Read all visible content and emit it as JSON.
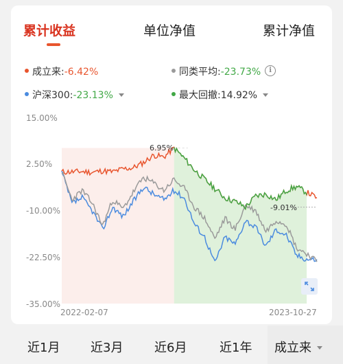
{
  "tabs": [
    {
      "label": "累计收益",
      "active": true
    },
    {
      "label": "单位净值",
      "active": false
    },
    {
      "label": "累计净值",
      "active": false
    }
  ],
  "legend": {
    "since_inception": {
      "label": "成立来:",
      "value": "-6.42%",
      "color": "#e8552e"
    },
    "peer_avg": {
      "label": "同类平均:",
      "value": "-23.73%",
      "color": "#9a9a9a",
      "icon": "info-icon"
    },
    "hs300": {
      "label": "沪深300:",
      "value": "-23.13%",
      "color": "#4a8bdf",
      "icon": "caret-down-icon"
    },
    "max_drawdown": {
      "label": "最大回撤:",
      "value": "14.92%",
      "color": "#41a846",
      "icon": "caret-down-icon"
    }
  },
  "chart_data": {
    "type": "line",
    "y_ticks": [
      "15.00%",
      "2.50%",
      "-10.00%",
      "-22.50%",
      "-35.00%"
    ],
    "ylim": [
      -35,
      15
    ],
    "x_range": [
      "2022-02-07",
      "2023-10-27"
    ],
    "annotations": {
      "peak": "6.95%",
      "end": "-9.01%"
    },
    "x": [
      0,
      0.04,
      0.08,
      0.12,
      0.16,
      0.2,
      0.24,
      0.28,
      0.32,
      0.36,
      0.4,
      0.44,
      0.48,
      0.52,
      0.56,
      0.6,
      0.64,
      0.68,
      0.72,
      0.76,
      0.8,
      0.84,
      0.88,
      0.92,
      0.96,
      1.0
    ],
    "series": [
      {
        "name": "成立来",
        "color": "#e8552e",
        "values": [
          0.5,
          0.5,
          0.6,
          0.4,
          0.8,
          0.5,
          1.3,
          1.6,
          3.0,
          5.0,
          4.5,
          6.95,
          4.2,
          1.0,
          -1.5,
          -4.0,
          -6.5,
          -7.5,
          -9.0,
          -6.0,
          -5.5,
          -7.0,
          -4.5,
          -3.5,
          -5.0,
          -6.42
        ]
      },
      {
        "name": "同类平均",
        "color": "#9a9a9a",
        "values": [
          0.5,
          -7.0,
          -4.5,
          -8.0,
          -14.0,
          -7.0,
          -9.5,
          -5.0,
          -1.0,
          -2.5,
          -4.5,
          -1.5,
          -4.0,
          -9.0,
          -12.0,
          -17.5,
          -12.0,
          -15.0,
          -8.5,
          -10.0,
          -15.5,
          -12.5,
          -13.5,
          -20.0,
          -21.5,
          -23.73
        ]
      },
      {
        "name": "沪深300",
        "color": "#4a8bdf",
        "values": [
          0.5,
          -8.0,
          -6.5,
          -10.0,
          -15.0,
          -9.0,
          -11.5,
          -7.5,
          -3.5,
          -5.5,
          -7.0,
          -4.5,
          -6.5,
          -13.5,
          -17.0,
          -24.0,
          -17.0,
          -19.0,
          -12.5,
          -14.5,
          -19.5,
          -15.0,
          -16.5,
          -22.0,
          -23.0,
          -23.13
        ]
      }
    ],
    "drawdown": {
      "color": "#41a846",
      "start_x": 0.44,
      "end_x": 0.96
    },
    "grid": false
  },
  "ranges": [
    {
      "label": "近1月",
      "active": false
    },
    {
      "label": "近3月",
      "active": false
    },
    {
      "label": "近6月",
      "active": false
    },
    {
      "label": "近1年",
      "active": false
    },
    {
      "label": "成立来",
      "active": true
    }
  ]
}
